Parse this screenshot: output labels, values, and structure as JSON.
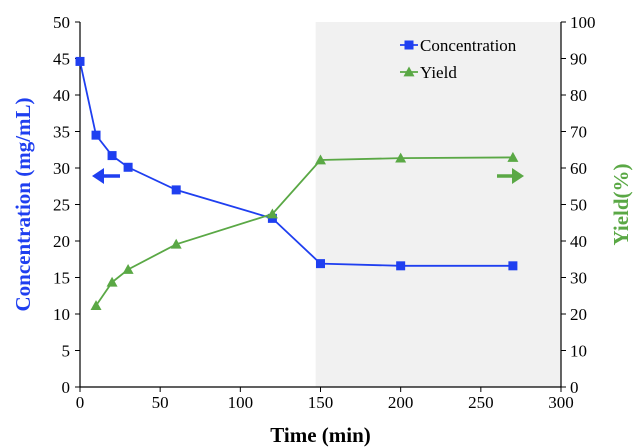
{
  "colors": {
    "concentration": "#1f3ff0",
    "yield": "#5aa845",
    "shade": "#f1f1f1",
    "axis": "#000000"
  },
  "chart_data": {
    "type": "line",
    "xlabel": "Time (min)",
    "ylabel_left": "Concentration (mg/mL)",
    "ylabel_right": "Yield(%)",
    "xlim": [
      0,
      300
    ],
    "ylim_left": [
      0,
      50
    ],
    "ylim_right": [
      0,
      100
    ],
    "x_ticks": [
      0,
      50,
      100,
      150,
      200,
      250,
      300
    ],
    "y_left_ticks": [
      0,
      5,
      10,
      15,
      20,
      25,
      30,
      35,
      40,
      45,
      50
    ],
    "y_right_ticks": [
      0,
      10,
      20,
      30,
      40,
      50,
      60,
      70,
      80,
      90,
      100
    ],
    "shaded_region_x": [
      147,
      300
    ],
    "legend_position": "top-right",
    "grid": false,
    "series": [
      {
        "name": "Concentration",
        "axis": "left",
        "marker": "square",
        "color": "#1f3ff0",
        "x": [
          0,
          10,
          20,
          30,
          60,
          120,
          150,
          200,
          270
        ],
        "values": [
          44.6,
          34.5,
          31.7,
          30.1,
          27.0,
          23.1,
          16.9,
          16.6,
          16.6
        ]
      },
      {
        "name": "Yield",
        "axis": "right",
        "marker": "triangle",
        "color": "#5aa845",
        "x": [
          10,
          20,
          30,
          60,
          120,
          150,
          200,
          270
        ],
        "values": [
          22.3,
          28.7,
          32.2,
          39.1,
          47.4,
          62.2,
          62.7,
          62.9
        ]
      }
    ]
  }
}
